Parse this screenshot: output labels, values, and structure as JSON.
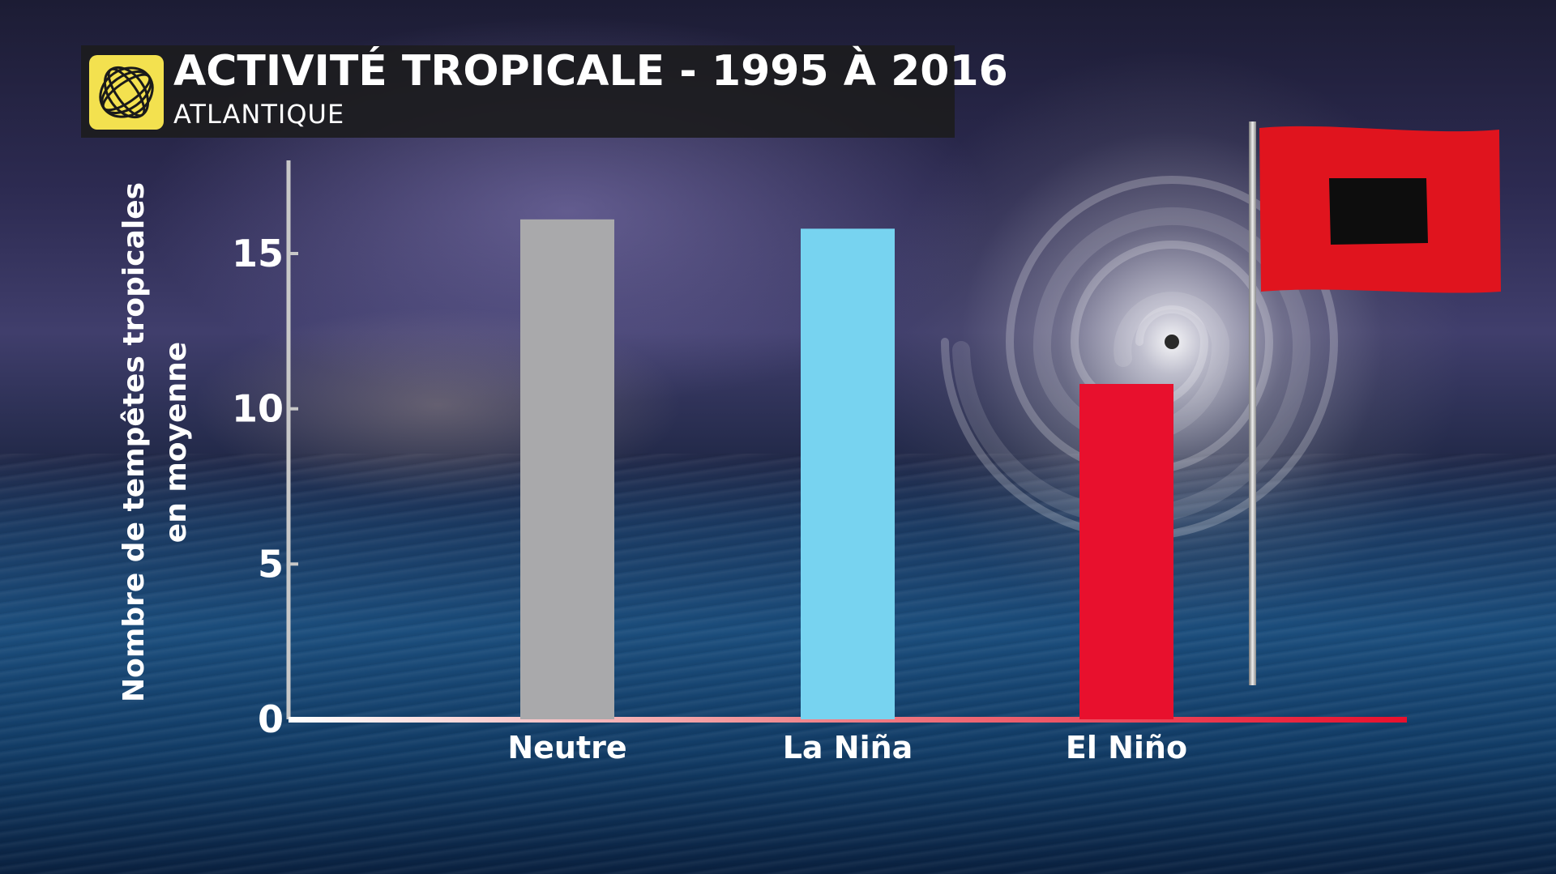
{
  "header": {
    "title": "ACTIVITÉ TROPICALE - 1995 À 2016",
    "subtitle": "ATLANTIQUE"
  },
  "logo": {
    "icon": "swirl-globe-icon",
    "color": "#f3e14f"
  },
  "flag": {
    "icon": "hurricane-warning-flag-icon",
    "color": "#e0141e"
  },
  "chart_data": {
    "type": "bar",
    "title": "ACTIVITÉ TROPICALE - 1995 À 2016",
    "subtitle": "ATLANTIQUE",
    "ylabel_lines": [
      "Nombre de tempêtes tropicales",
      "en moyenne"
    ],
    "xlabel": "",
    "categories": [
      "Neutre",
      "La Niña",
      "El Niño"
    ],
    "values": [
      16.1,
      15.8,
      10.8
    ],
    "colors": [
      "#a9a9ab",
      "#77d3f0",
      "#e8102d"
    ],
    "ylim": [
      0,
      18
    ],
    "yticks": [
      0,
      5,
      10,
      15
    ],
    "grid": false,
    "legend": "none"
  }
}
